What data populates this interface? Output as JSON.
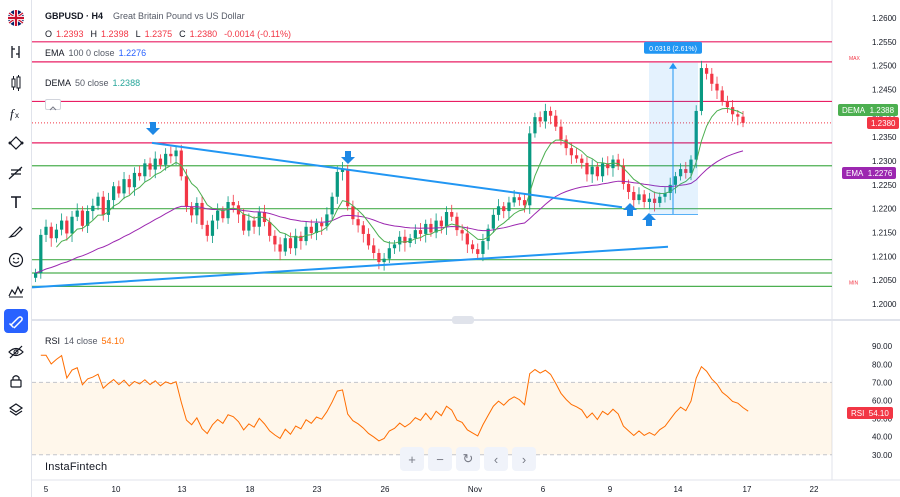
{
  "toolbar": {
    "flag_icon": "uk-flag-icon",
    "tools": [
      "chart-type-icon",
      "indicators-icon",
      "fx-icon",
      "trend-line-icon",
      "fib-icon",
      "text-icon",
      "brush-icon",
      "emoji-icon",
      "patterns-icon",
      "magnet-icon",
      "eye-icon",
      "lock-icon",
      "layers-icon"
    ]
  },
  "header": {
    "symbol": "GBPUSD · H4",
    "description": "Great Britain Pound vs US Dollar",
    "o_label": "O",
    "o_value": "1.2393",
    "h_label": "H",
    "h_value": "1.2398",
    "l_label": "L",
    "l_value": "1.2375",
    "c_label": "C",
    "c_value": "1.2380",
    "change": "-0.0014 (-0.11%)"
  },
  "indicators": {
    "ema": {
      "label": "EMA",
      "params": "100 0 close",
      "value": "1.2276"
    },
    "dema": {
      "label": "DEMA",
      "params": "50 close",
      "value": "1.2388"
    },
    "rsi": {
      "label": "RSI",
      "params": "14 close",
      "value": "54.10"
    }
  },
  "measure_label": "0.0318 (2.61%)",
  "max_label": "MAX",
  "min_label": "MIN",
  "price_tags": {
    "dema": {
      "name": "DEMA",
      "value": "1.2388"
    },
    "last": {
      "value": "1.2380"
    },
    "ema": {
      "name": "EMA",
      "value": "1.2276"
    },
    "rsi": {
      "name": "RSI",
      "value": "54.10"
    }
  },
  "watermark": "InstaFintech",
  "nav_buttons": [
    "+",
    "−",
    "↻",
    "‹",
    "›"
  ],
  "colors": {
    "up": "#089981",
    "down": "#f23645",
    "ema": "#9c27b0",
    "dema": "#4caf50",
    "trend": "#2196f3",
    "horizontal_red": "#e91e63",
    "horizontal_green": "#4caf50",
    "rsi": "#ff6d00"
  },
  "chart_data": [
    {
      "type": "candlestick",
      "symbol": "GBPUSD",
      "timeframe": "H4",
      "y_ticks": [
        "1.2600",
        "1.2550",
        "1.2500",
        "1.2450",
        "1.2400",
        "1.2350",
        "1.2300",
        "1.2250",
        "1.2200",
        "1.2150",
        "1.2100",
        "1.2050",
        "1.2000"
      ],
      "ylim": [
        1.2,
        1.26
      ],
      "x_ticks": [
        "5",
        "10",
        "13",
        "18",
        "23",
        "26",
        "Nov",
        "6",
        "9",
        "14",
        "17",
        "22"
      ],
      "resistance_levels": [
        1.255,
        1.2508,
        1.2425,
        1.2338
      ],
      "support_levels": [
        1.229,
        1.22,
        1.2093,
        1.2065,
        1.2037
      ],
      "dotted_last_price": 1.238,
      "ohlc_close_series": [
        1.2065,
        1.2145,
        1.2162,
        1.2138,
        1.2156,
        1.2175,
        1.2148,
        1.2183,
        1.2196,
        1.2164,
        1.2195,
        1.2206,
        1.2225,
        1.2187,
        1.2218,
        1.2247,
        1.2232,
        1.2262,
        1.2245,
        1.2275,
        1.2268,
        1.2295,
        1.2282,
        1.2305,
        1.2292,
        1.2315,
        1.231,
        1.2322,
        1.2268,
        1.2205,
        1.2186,
        1.2212,
        1.2166,
        1.2143,
        1.2175,
        1.2196,
        1.218,
        1.2214,
        1.2207,
        1.2188,
        1.2154,
        1.2175,
        1.2162,
        1.2193,
        1.2172,
        1.2143,
        1.2125,
        1.211,
        1.2138,
        1.2117,
        1.2143,
        1.2132,
        1.2162,
        1.2149,
        1.217,
        1.2163,
        1.2188,
        1.2225,
        1.2277,
        1.2283,
        1.2205,
        1.2178,
        1.2165,
        1.2147,
        1.2123,
        1.2107,
        1.2088,
        1.2095,
        1.2117,
        1.2125,
        1.2141,
        1.2128,
        1.2138,
        1.2155,
        1.2147,
        1.2168,
        1.215,
        1.2175,
        1.2163,
        1.2193,
        1.2183,
        1.2155,
        1.2148,
        1.2125,
        1.2115,
        1.2105,
        1.2132,
        1.2158,
        1.2187,
        1.2205,
        1.2195,
        1.2213,
        1.2224,
        1.2218,
        1.2207,
        1.2358,
        1.2392,
        1.2383,
        1.2405,
        1.2395,
        1.2372,
        1.2345,
        1.2327,
        1.2312,
        1.2305,
        1.2296,
        1.2272,
        1.2288,
        1.2268,
        1.2295,
        1.2285,
        1.2303,
        1.229,
        1.2252,
        1.2235,
        1.2218,
        1.223,
        1.2214,
        1.2221,
        1.2212,
        1.2225,
        1.2233,
        1.225,
        1.2268,
        1.2283,
        1.2275,
        1.2303,
        1.2405,
        1.2495,
        1.2483,
        1.2462,
        1.2448,
        1.2425,
        1.2413,
        1.2398,
        1.2393,
        1.238
      ],
      "measure": {
        "from": 1.2188,
        "to": 1.2506,
        "change": 0.0318,
        "percent": 2.61
      }
    },
    {
      "type": "line",
      "title": "RSI",
      "y_ticks": [
        "90.00",
        "80.00",
        "70.00",
        "60.00",
        "50.00",
        "40.00",
        "30.00"
      ],
      "ylim": [
        26,
        94
      ],
      "band": [
        30,
        70
      ],
      "last_value": 54.1
    }
  ]
}
